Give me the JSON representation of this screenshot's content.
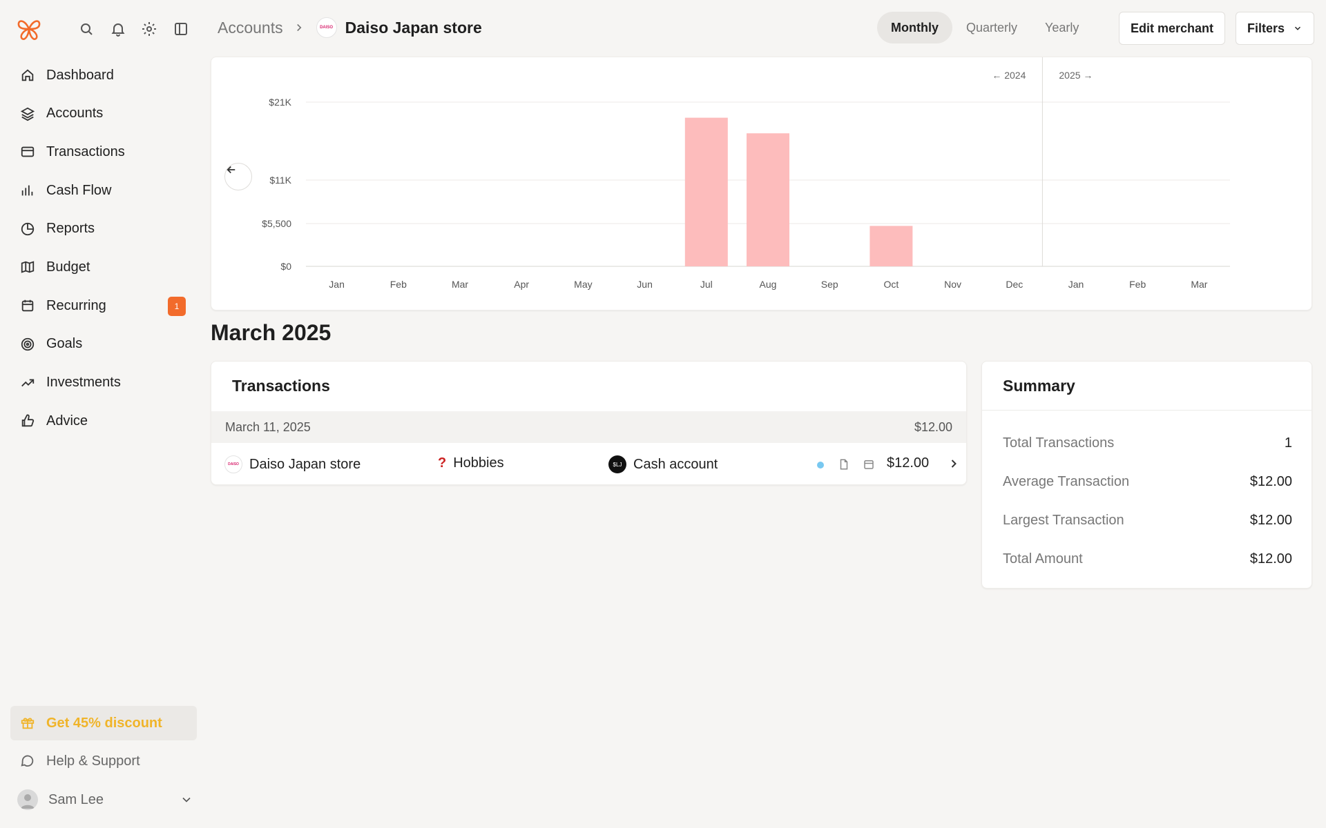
{
  "sidebar": {
    "items": [
      {
        "label": "Dashboard",
        "icon": "home-icon"
      },
      {
        "label": "Accounts",
        "icon": "layers-icon"
      },
      {
        "label": "Transactions",
        "icon": "credit-card-icon"
      },
      {
        "label": "Cash Flow",
        "icon": "bar-chart-icon"
      },
      {
        "label": "Reports",
        "icon": "pie-chart-icon"
      },
      {
        "label": "Budget",
        "icon": "map-icon"
      },
      {
        "label": "Recurring",
        "icon": "calendar-icon",
        "badge": "1"
      },
      {
        "label": "Goals",
        "icon": "target-icon"
      },
      {
        "label": "Investments",
        "icon": "trending-up-icon"
      },
      {
        "label": "Advice",
        "icon": "thumbs-up-icon"
      }
    ],
    "promo_label": "Get 45% discount",
    "help_label": "Help & Support",
    "user_name": "Sam Lee"
  },
  "header": {
    "breadcrumb_parent": "Accounts",
    "breadcrumb_current": "Daiso Japan store",
    "merchant_logo_text": "DAISO",
    "periods": [
      "Monthly",
      "Quarterly",
      "Yearly"
    ],
    "active_period": "Monthly",
    "edit_label": "Edit merchant",
    "filters_label": "Filters"
  },
  "chart_data": {
    "type": "bar",
    "categories": [
      "Jan",
      "Feb",
      "Mar",
      "Apr",
      "May",
      "Jun",
      "Jul",
      "Aug",
      "Sep",
      "Oct",
      "Nov",
      "Dec",
      "Jan",
      "Feb",
      "Mar"
    ],
    "values": [
      0,
      0,
      0,
      0,
      0,
      0,
      19000,
      17000,
      0,
      5200,
      0,
      0,
      0,
      0,
      0
    ],
    "y_ticks": [
      {
        "label": "$0",
        "value": 0
      },
      {
        "label": "$5,500",
        "value": 5500
      },
      {
        "label": "$11K",
        "value": 11000
      },
      {
        "label": "$21K",
        "value": 21000
      }
    ],
    "year_labels": {
      "prev": "← 2024",
      "next": "2025 →"
    },
    "bar_color": "#fdbcbc",
    "grid": true
  },
  "month_title": "March 2025",
  "transactions": {
    "title": "Transactions",
    "date": "March 11, 2025",
    "day_total": "$12.00",
    "row": {
      "merchant": "Daiso Japan store",
      "category": "Hobbies",
      "category_icon": "?",
      "account": "Cash account",
      "account_icon_text": "$LJ",
      "amount": "$12.00"
    }
  },
  "summary": {
    "title": "Summary",
    "rows": [
      {
        "label": "Total Transactions",
        "value": "1"
      },
      {
        "label": "Average Transaction",
        "value": "$12.00"
      },
      {
        "label": "Largest Transaction",
        "value": "$12.00"
      },
      {
        "label": "Total Amount",
        "value": "$12.00"
      }
    ]
  },
  "colors": {
    "accent_orange": "#f26b2b",
    "promo_yellow": "#f0b429",
    "background": "#f6f5f3"
  }
}
